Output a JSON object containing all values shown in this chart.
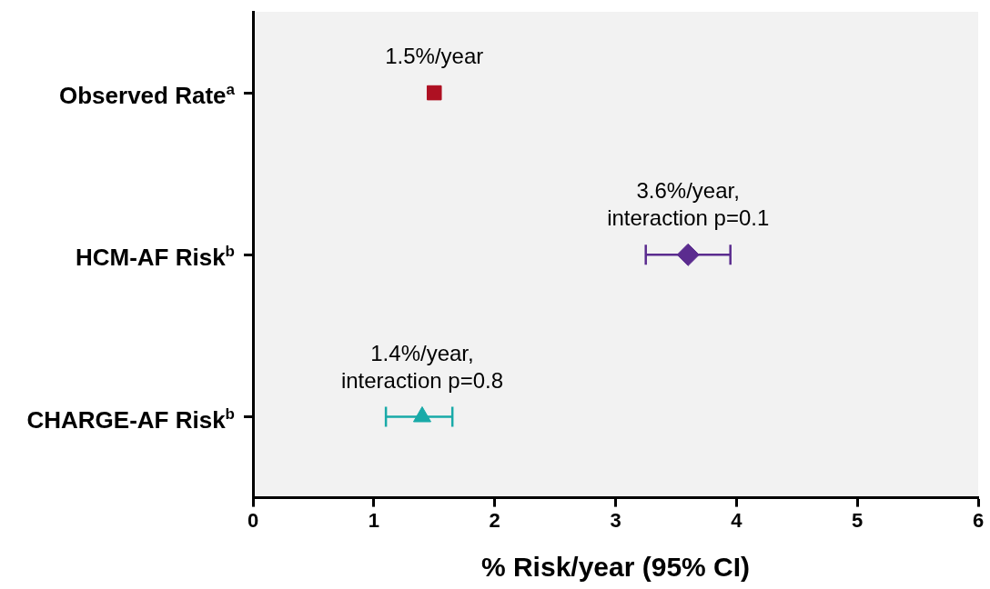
{
  "chart_data": {
    "type": "scatter",
    "orientation": "horizontal",
    "xlabel": "% Risk/year (95% CI)",
    "categories": [
      "Observed Rate$^{a}$",
      "HCM-AF Risk$^{b}$",
      "CHARGE-AF Risk$^{b}$"
    ],
    "series": [
      {
        "color": "#ae1022",
        "marker": "square",
        "values": [
          1.5,
          null,
          null
        ]
      },
      {
        "color": "#5b2c8f",
        "marker": "diamond",
        "values": [
          null,
          3.6,
          null
        ],
        "errors": [
          null,
          [
            3.25,
            3.95
          ],
          null
        ]
      },
      {
        "color": "#19aaa8",
        "marker": "triangle",
        "values": [
          null,
          null,
          1.4
        ],
        "errors": [
          null,
          null,
          [
            1.1,
            1.65
          ]
        ]
      }
    ],
    "xlim": [
      0,
      6
    ],
    "xticks": [
      0,
      1,
      2,
      3,
      4,
      5,
      6
    ],
    "grid": false,
    "legend": false,
    "annotations": [
      {
        "text": "1.5%/year",
        "x": 1.5,
        "y": "Observed Rate$^{a}$"
      },
      {
        "text": "3.6%/year,\ninteraction p=0.1",
        "x": 3.6,
        "y": "HCM-AF Risk$^{b}$"
      },
      {
        "text": "1.4%/year,\ninteraction p=0.8",
        "x": 1.4,
        "y": "CHARGE-AF Risk$^{b}$"
      }
    ]
  }
}
